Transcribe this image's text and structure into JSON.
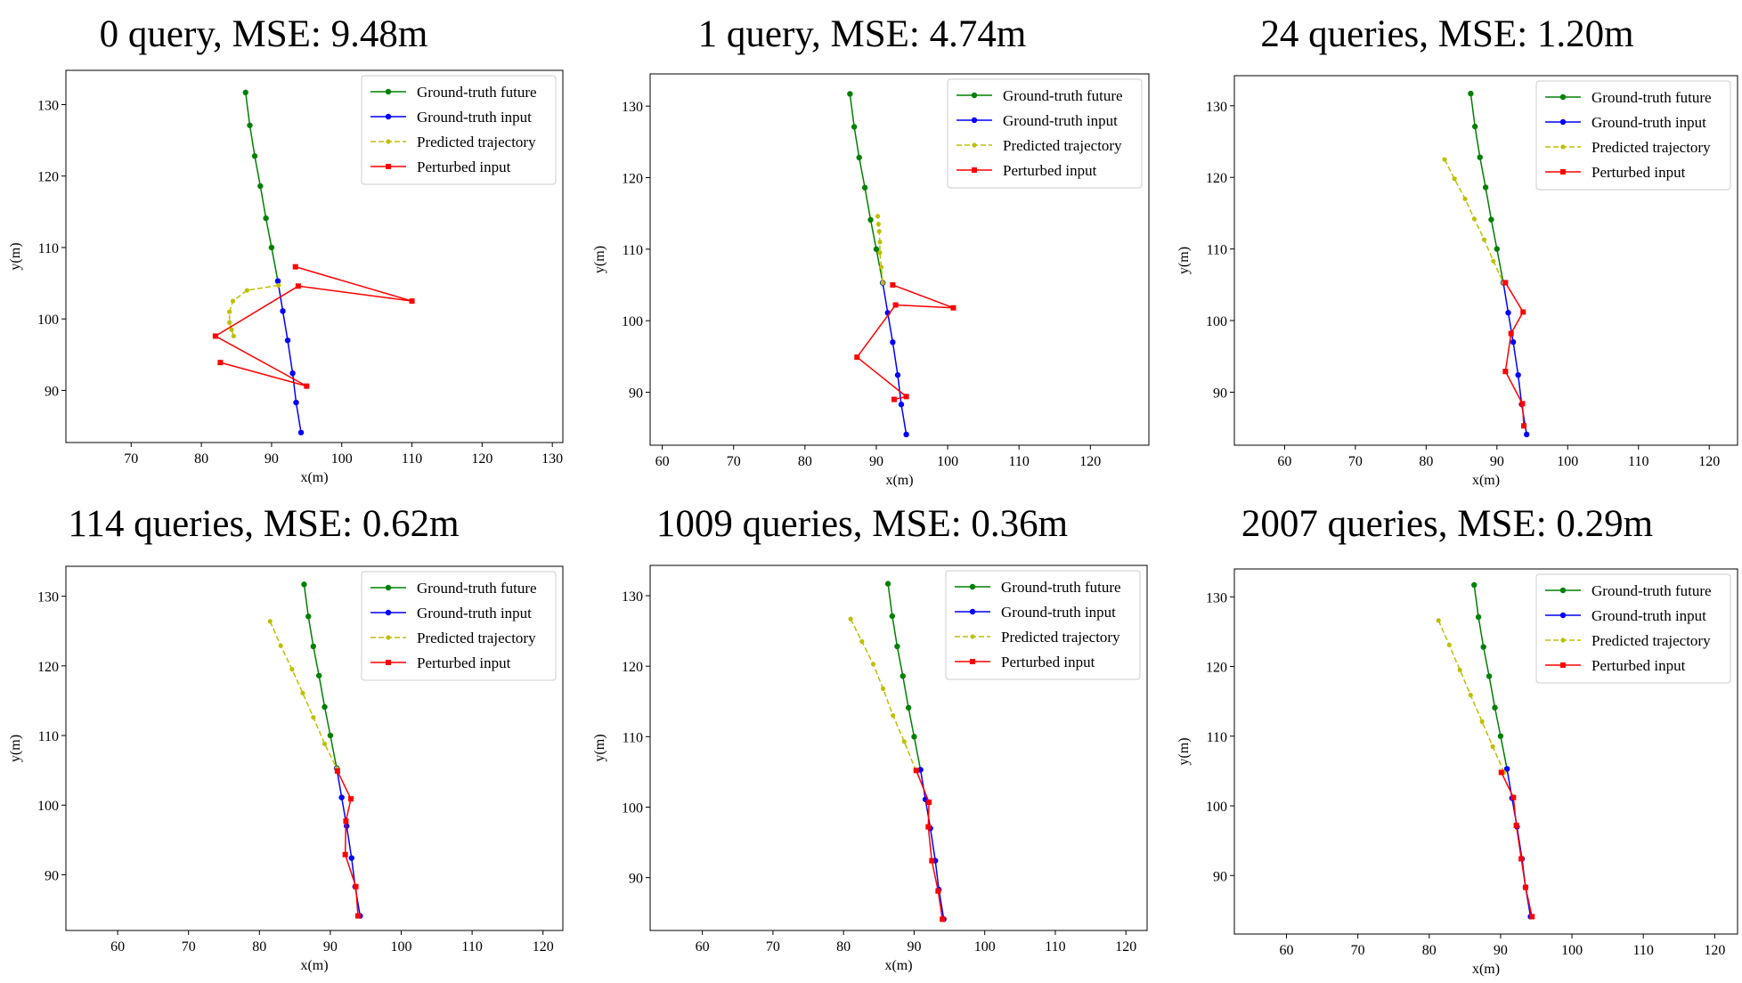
{
  "figure": {
    "colors": {
      "future": "#008000",
      "input": "#0000ff",
      "predicted": "#bfbf00",
      "perturbed": "#ff0000"
    }
  },
  "chart_data": [
    {
      "type": "line",
      "title": "0 query, MSE: 9.48m",
      "xlabel": "x(m)",
      "ylabel": "y(m)",
      "xlim": [
        60.7,
        131.5
      ],
      "ylim": [
        82.7,
        134.8
      ],
      "xticks": [
        70,
        80,
        90,
        100,
        110,
        120,
        130
      ],
      "yticks": [
        90,
        100,
        110,
        120,
        130
      ],
      "legend_position": "upper right",
      "series": [
        {
          "name": "Ground-truth future",
          "style": "solid-circle",
          "color": "#008000",
          "points": [
            [
              86.3,
              131.7
            ],
            [
              86.9,
              127.1
            ],
            [
              87.6,
              122.8
            ],
            [
              88.4,
              118.6
            ],
            [
              89.2,
              114.1
            ],
            [
              90.0,
              110.0
            ],
            [
              90.9,
              105.3
            ]
          ]
        },
        {
          "name": "Ground-truth input",
          "style": "solid-circle",
          "color": "#0000ff",
          "points": [
            [
              90.9,
              105.3
            ],
            [
              91.6,
              101.1
            ],
            [
              92.3,
              97.0
            ],
            [
              93.0,
              92.4
            ],
            [
              93.5,
              88.3
            ],
            [
              94.2,
              84.1
            ]
          ]
        },
        {
          "name": "Predicted trajectory",
          "style": "dashed-circle",
          "color": "#bfbf00",
          "points": [
            [
              91.0,
              104.7
            ],
            [
              86.5,
              104.0
            ],
            [
              84.5,
              102.5
            ],
            [
              84.0,
              101.0
            ],
            [
              84.0,
              99.5
            ],
            [
              84.3,
              98.5
            ],
            [
              84.6,
              97.6
            ]
          ]
        },
        {
          "name": "Perturbed input",
          "style": "solid-square",
          "color": "#ff0000",
          "points": [
            [
              93.4,
              107.3
            ],
            [
              110.0,
              102.5
            ],
            [
              93.8,
              104.6
            ],
            [
              82.0,
              97.6
            ],
            [
              95.0,
              90.6
            ],
            [
              82.7,
              93.9
            ]
          ]
        }
      ]
    },
    {
      "type": "line",
      "title": "1 query, MSE: 4.74m",
      "xlabel": "x(m)",
      "ylabel": "y(m)",
      "xlim": [
        58.3,
        128.2
      ],
      "ylim": [
        82.6,
        134.5
      ],
      "xticks": [
        60,
        70,
        80,
        90,
        100,
        110,
        120
      ],
      "yticks": [
        90,
        100,
        110,
        120,
        130
      ],
      "legend_position": "upper right",
      "series": [
        {
          "name": "Ground-truth future",
          "style": "solid-circle",
          "color": "#008000",
          "points": [
            [
              86.3,
              131.7
            ],
            [
              86.9,
              127.1
            ],
            [
              87.6,
              122.8
            ],
            [
              88.4,
              118.6
            ],
            [
              89.2,
              114.1
            ],
            [
              90.0,
              110.0
            ],
            [
              90.9,
              105.3
            ]
          ]
        },
        {
          "name": "Ground-truth input",
          "style": "solid-circle",
          "color": "#0000ff",
          "points": [
            [
              90.9,
              105.3
            ],
            [
              91.6,
              101.1
            ],
            [
              92.3,
              97.0
            ],
            [
              93.0,
              92.4
            ],
            [
              93.5,
              88.3
            ],
            [
              94.2,
              84.1
            ]
          ]
        },
        {
          "name": "Predicted trajectory",
          "style": "dashed-circle",
          "color": "#bfbf00",
          "points": [
            [
              90.9,
              105.3
            ],
            [
              90.7,
              107.5
            ],
            [
              90.5,
              109.5
            ],
            [
              90.5,
              111.0
            ],
            [
              90.4,
              112.5
            ],
            [
              90.3,
              113.5
            ],
            [
              90.2,
              114.6
            ]
          ]
        },
        {
          "name": "Perturbed input",
          "style": "solid-square",
          "color": "#ff0000",
          "points": [
            [
              92.3,
              105.0
            ],
            [
              100.8,
              101.8
            ],
            [
              92.7,
              102.2
            ],
            [
              87.3,
              94.9
            ],
            [
              94.2,
              89.4
            ],
            [
              92.5,
              89.0
            ]
          ]
        }
      ]
    },
    {
      "type": "line",
      "title": "24 queries, MSE: 1.20m",
      "xlabel": "x(m)",
      "ylabel": "y(m)",
      "xlim": [
        52.9,
        124.0
      ],
      "ylim": [
        82.6,
        134.2
      ],
      "xticks": [
        60,
        70,
        80,
        90,
        100,
        110,
        120
      ],
      "yticks": [
        90,
        100,
        110,
        120,
        130
      ],
      "legend_position": "upper right",
      "series": [
        {
          "name": "Ground-truth future",
          "style": "solid-circle",
          "color": "#008000",
          "points": [
            [
              86.3,
              131.7
            ],
            [
              86.9,
              127.1
            ],
            [
              87.6,
              122.8
            ],
            [
              88.4,
              118.6
            ],
            [
              89.2,
              114.1
            ],
            [
              90.0,
              110.0
            ],
            [
              90.9,
              105.3
            ]
          ]
        },
        {
          "name": "Ground-truth input",
          "style": "solid-circle",
          "color": "#0000ff",
          "points": [
            [
              90.9,
              105.3
            ],
            [
              91.6,
              101.1
            ],
            [
              92.3,
              97.0
            ],
            [
              93.0,
              92.4
            ],
            [
              93.5,
              88.3
            ],
            [
              94.2,
              84.1
            ]
          ]
        },
        {
          "name": "Predicted trajectory",
          "style": "dashed-circle",
          "color": "#bfbf00",
          "points": [
            [
              82.6,
              122.5
            ],
            [
              84.0,
              119.8
            ],
            [
              85.5,
              117.0
            ],
            [
              86.8,
              114.2
            ],
            [
              88.2,
              111.3
            ],
            [
              89.5,
              108.3
            ],
            [
              90.9,
              105.3
            ]
          ]
        },
        {
          "name": "Perturbed input",
          "style": "solid-square",
          "color": "#ff0000",
          "points": [
            [
              91.2,
              105.3
            ],
            [
              93.7,
              101.2
            ],
            [
              92.0,
              98.2
            ],
            [
              91.2,
              92.9
            ],
            [
              93.6,
              88.4
            ],
            [
              93.8,
              85.3
            ]
          ]
        }
      ]
    },
    {
      "type": "line",
      "title": "114 queries, MSE: 0.62m",
      "xlabel": "x(m)",
      "ylabel": "y(m)",
      "xlim": [
        52.7,
        122.8
      ],
      "ylim": [
        82.0,
        134.3
      ],
      "xticks": [
        60,
        70,
        80,
        90,
        100,
        110,
        120
      ],
      "yticks": [
        90,
        100,
        110,
        120,
        130
      ],
      "legend_position": "upper right",
      "series": [
        {
          "name": "Ground-truth future",
          "style": "solid-circle",
          "color": "#008000",
          "points": [
            [
              86.3,
              131.7
            ],
            [
              86.9,
              127.1
            ],
            [
              87.6,
              122.8
            ],
            [
              88.4,
              118.6
            ],
            [
              89.2,
              114.1
            ],
            [
              90.0,
              110.0
            ],
            [
              90.9,
              105.3
            ]
          ]
        },
        {
          "name": "Ground-truth input",
          "style": "solid-circle",
          "color": "#0000ff",
          "points": [
            [
              90.9,
              105.3
            ],
            [
              91.6,
              101.1
            ],
            [
              92.3,
              97.0
            ],
            [
              93.0,
              92.4
            ],
            [
              93.5,
              88.3
            ],
            [
              94.2,
              84.1
            ]
          ]
        },
        {
          "name": "Predicted trajectory",
          "style": "dashed-circle",
          "color": "#bfbf00",
          "points": [
            [
              81.5,
              126.4
            ],
            [
              83.0,
              122.9
            ],
            [
              84.6,
              119.5
            ],
            [
              86.1,
              116.1
            ],
            [
              87.6,
              112.6
            ],
            [
              89.2,
              108.8
            ],
            [
              90.9,
              105.3
            ]
          ]
        },
        {
          "name": "Perturbed input",
          "style": "solid-square",
          "color": "#ff0000",
          "points": [
            [
              91.0,
              104.9
            ],
            [
              92.9,
              100.9
            ],
            [
              92.2,
              97.7
            ],
            [
              92.1,
              92.9
            ],
            [
              93.6,
              88.3
            ],
            [
              93.9,
              84.1
            ]
          ]
        }
      ]
    },
    {
      "type": "line",
      "title": "1009 queries, MSE: 0.36m",
      "xlabel": "x(m)",
      "ylabel": "y(m)",
      "xlim": [
        52.6,
        123.0
      ],
      "ylim": [
        82.5,
        134.3
      ],
      "xticks": [
        60,
        70,
        80,
        90,
        100,
        110,
        120
      ],
      "yticks": [
        90,
        100,
        110,
        120,
        130
      ],
      "legend_position": "upper right",
      "series": [
        {
          "name": "Ground-truth future",
          "style": "solid-circle",
          "color": "#008000",
          "points": [
            [
              86.3,
              131.7
            ],
            [
              86.9,
              127.1
            ],
            [
              87.6,
              122.8
            ],
            [
              88.4,
              118.6
            ],
            [
              89.2,
              114.1
            ],
            [
              90.0,
              110.0
            ],
            [
              90.9,
              105.3
            ]
          ]
        },
        {
          "name": "Ground-truth input",
          "style": "solid-circle",
          "color": "#0000ff",
          "points": [
            [
              90.9,
              105.3
            ],
            [
              91.6,
              101.1
            ],
            [
              92.3,
              97.0
            ],
            [
              93.0,
              92.4
            ],
            [
              93.5,
              88.3
            ],
            [
              94.2,
              84.1
            ]
          ]
        },
        {
          "name": "Predicted trajectory",
          "style": "dashed-circle",
          "color": "#bfbf00",
          "points": [
            [
              81.0,
              126.7
            ],
            [
              82.6,
              123.5
            ],
            [
              84.2,
              120.3
            ],
            [
              85.6,
              116.8
            ],
            [
              87.0,
              113.0
            ],
            [
              88.6,
              109.3
            ],
            [
              90.2,
              105.3
            ]
          ]
        },
        {
          "name": "Perturbed input",
          "style": "solid-square",
          "color": "#ff0000",
          "points": [
            [
              90.3,
              105.2
            ],
            [
              92.1,
              100.7
            ],
            [
              92.0,
              97.2
            ],
            [
              92.5,
              92.4
            ],
            [
              93.4,
              88.1
            ],
            [
              94.0,
              84.1
            ]
          ]
        }
      ]
    },
    {
      "type": "line",
      "title": "2007 queries, MSE: 0.29m",
      "xlabel": "x(m)",
      "ylabel": "y(m)",
      "xlim": [
        52.7,
        123.2
      ],
      "ylim": [
        81.6,
        134.0
      ],
      "xticks": [
        60,
        70,
        80,
        90,
        100,
        110,
        120
      ],
      "yticks": [
        90,
        100,
        110,
        120,
        130
      ],
      "legend_position": "upper right",
      "series": [
        {
          "name": "Ground-truth future",
          "style": "solid-circle",
          "color": "#008000",
          "points": [
            [
              86.3,
              131.7
            ],
            [
              86.9,
              127.1
            ],
            [
              87.6,
              122.8
            ],
            [
              88.4,
              118.6
            ],
            [
              89.2,
              114.1
            ],
            [
              90.0,
              110.0
            ],
            [
              90.9,
              105.3
            ]
          ]
        },
        {
          "name": "Ground-truth input",
          "style": "solid-circle",
          "color": "#0000ff",
          "points": [
            [
              90.9,
              105.3
            ],
            [
              91.6,
              101.1
            ],
            [
              92.3,
              97.0
            ],
            [
              93.0,
              92.4
            ],
            [
              93.5,
              88.3
            ],
            [
              94.2,
              84.1
            ]
          ]
        },
        {
          "name": "Predicted trajectory",
          "style": "dashed-circle",
          "color": "#bfbf00",
          "points": [
            [
              81.3,
              126.6
            ],
            [
              82.8,
              123.1
            ],
            [
              84.3,
              119.5
            ],
            [
              85.8,
              115.9
            ],
            [
              87.4,
              112.1
            ],
            [
              88.9,
              108.5
            ],
            [
              90.5,
              104.8
            ]
          ]
        },
        {
          "name": "Perturbed input",
          "style": "solid-square",
          "color": "#ff0000",
          "points": [
            [
              90.1,
              104.8
            ],
            [
              91.8,
              101.2
            ],
            [
              92.2,
              97.2
            ],
            [
              92.9,
              92.4
            ],
            [
              93.5,
              88.3
            ],
            [
              94.4,
              84.1
            ]
          ]
        }
      ]
    }
  ]
}
